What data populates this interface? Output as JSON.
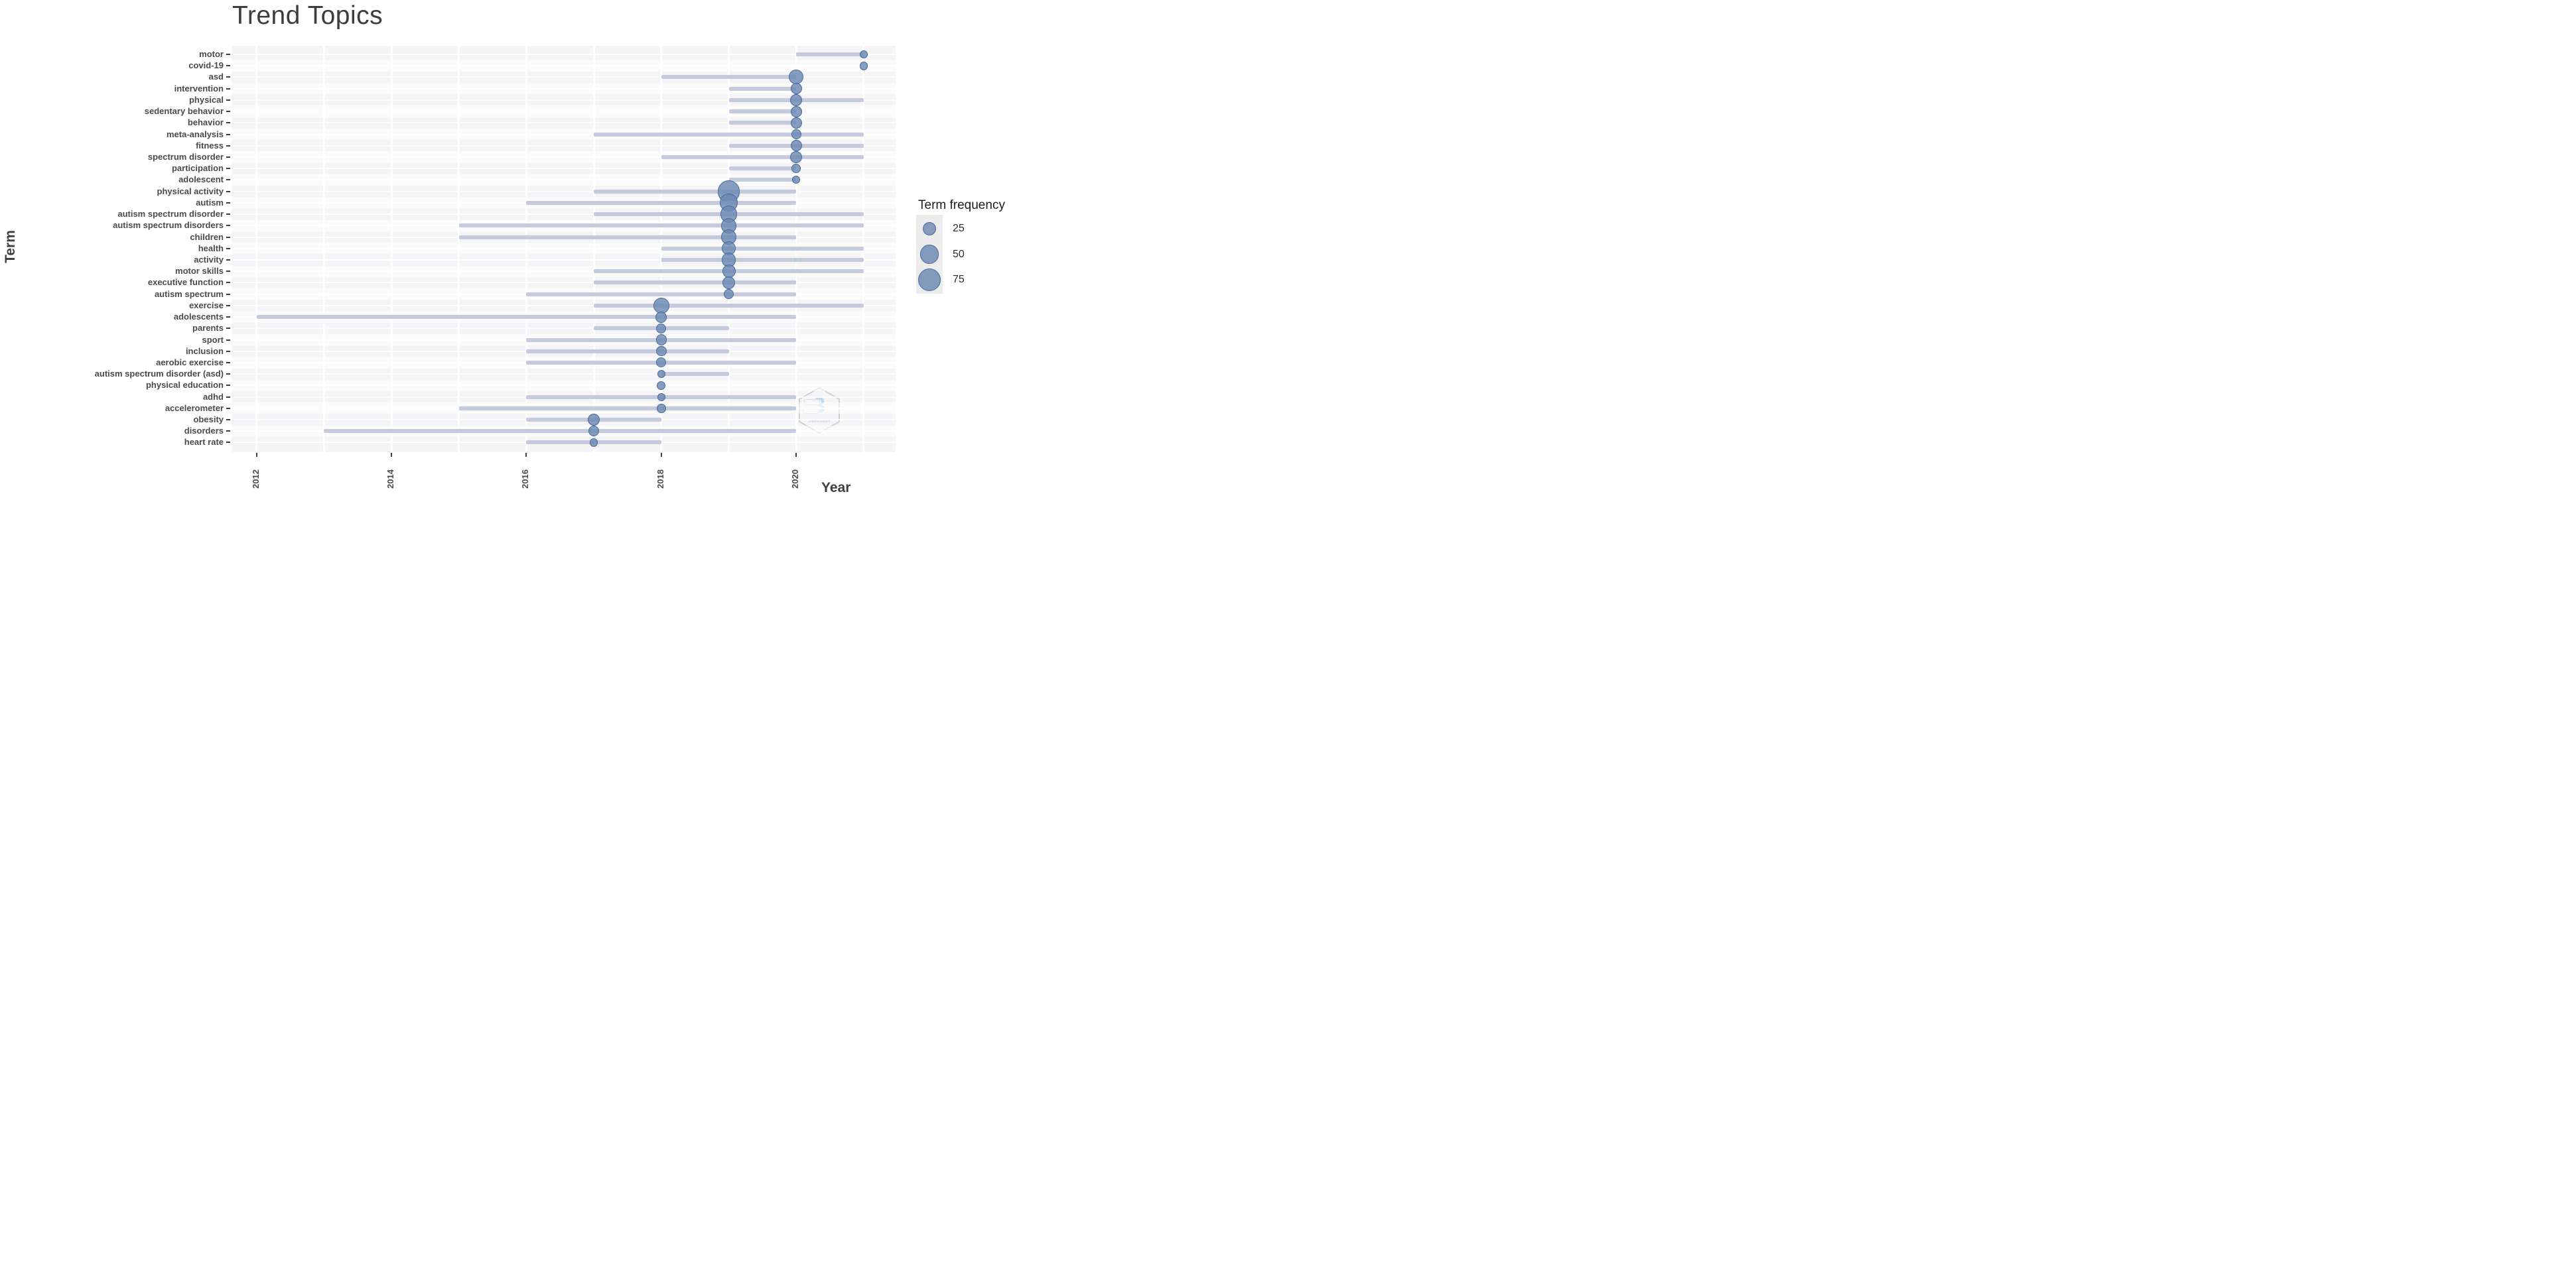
{
  "title": "Trend Topics",
  "colors": {
    "title_text": "#3d3d3d",
    "axis_text": "#4a4a4a",
    "panel_bg": "#f5f5f7",
    "gridline": "#ffffff",
    "trend_line": "#c6cadd",
    "bubble_fill": "rgba(106,137,178,0.82)",
    "bubble_stroke": "#48699c",
    "legend_key_bg": "#ececec"
  },
  "watermark": {
    "glyph": "3",
    "label": "bibliometrix"
  },
  "chart_data": {
    "type": "scatter",
    "subtype": "trend-topics-bubble-timeline",
    "title": "Trend Topics",
    "xlabel": "Year",
    "ylabel": "Term",
    "x_ticks": [
      "2012",
      "2014",
      "2016",
      "2018",
      "2020"
    ],
    "xlim": [
      2011.6,
      2021.5
    ],
    "grid": "white gridlines on light gray panel",
    "legend": {
      "title": "Term frequency",
      "position": "right",
      "sizes": [
        25,
        50,
        75
      ]
    },
    "rows": [
      {
        "term": "motor",
        "start": 2020,
        "end": 2021,
        "peak": 2021,
        "freq": 10
      },
      {
        "term": "covid-19",
        "start": null,
        "end": null,
        "peak": 2021,
        "freq": 10
      },
      {
        "term": "asd",
        "start": 2018,
        "end": 2020,
        "peak": 2020,
        "freq": 30
      },
      {
        "term": "intervention",
        "start": 2019,
        "end": 2020,
        "peak": 2020,
        "freq": 18
      },
      {
        "term": "physical",
        "start": 2019,
        "end": 2021,
        "peak": 2020,
        "freq": 20
      },
      {
        "term": "sedentary behavior",
        "start": 2019,
        "end": 2020,
        "peak": 2020,
        "freq": 18
      },
      {
        "term": "behavior",
        "start": 2019,
        "end": 2020,
        "peak": 2020,
        "freq": 18
      },
      {
        "term": "meta-analysis",
        "start": 2017,
        "end": 2021,
        "peak": 2020,
        "freq": 14
      },
      {
        "term": "fitness",
        "start": 2019,
        "end": 2021,
        "peak": 2020,
        "freq": 18
      },
      {
        "term": "spectrum disorder",
        "start": 2018,
        "end": 2021,
        "peak": 2020,
        "freq": 20
      },
      {
        "term": "participation",
        "start": 2019,
        "end": 2020,
        "peak": 2020,
        "freq": 13
      },
      {
        "term": "adolescent",
        "start": 2019,
        "end": 2020,
        "peak": 2020,
        "freq": 9
      },
      {
        "term": "physical activity",
        "start": 2017,
        "end": 2020,
        "peak": 2019,
        "freq": 72
      },
      {
        "term": "autism",
        "start": 2016,
        "end": 2020,
        "peak": 2019,
        "freq": 45
      },
      {
        "term": "autism spectrum disorder",
        "start": 2017,
        "end": 2021,
        "peak": 2019,
        "freq": 42
      },
      {
        "term": "autism spectrum disorders",
        "start": 2015,
        "end": 2021,
        "peak": 2019,
        "freq": 33
      },
      {
        "term": "children",
        "start": 2015,
        "end": 2020,
        "peak": 2019,
        "freq": 35
      },
      {
        "term": "health",
        "start": 2018,
        "end": 2021,
        "peak": 2019,
        "freq": 28
      },
      {
        "term": "activity",
        "start": 2018,
        "end": 2021,
        "peak": 2019,
        "freq": 28
      },
      {
        "term": "motor skills",
        "start": 2017,
        "end": 2021,
        "peak": 2019,
        "freq": 25
      },
      {
        "term": "executive function",
        "start": 2017,
        "end": 2020,
        "peak": 2019,
        "freq": 22
      },
      {
        "term": "autism spectrum",
        "start": 2016,
        "end": 2020,
        "peak": 2019,
        "freq": 14
      },
      {
        "term": "exercise",
        "start": 2017,
        "end": 2021,
        "peak": 2018,
        "freq": 35
      },
      {
        "term": "adolescents",
        "start": 2012,
        "end": 2020,
        "peak": 2018,
        "freq": 18
      },
      {
        "term": "parents",
        "start": 2017,
        "end": 2019,
        "peak": 2018,
        "freq": 14
      },
      {
        "term": "sport",
        "start": 2016,
        "end": 2020,
        "peak": 2018,
        "freq": 17
      },
      {
        "term": "inclusion",
        "start": 2016,
        "end": 2019,
        "peak": 2018,
        "freq": 15
      },
      {
        "term": "aerobic exercise",
        "start": 2016,
        "end": 2020,
        "peak": 2018,
        "freq": 14
      },
      {
        "term": "autism spectrum disorder (asd)",
        "start": 2018,
        "end": 2019,
        "peak": 2018,
        "freq": 10
      },
      {
        "term": "physical education",
        "start": null,
        "end": null,
        "peak": 2018,
        "freq": 11
      },
      {
        "term": "adhd",
        "start": 2016,
        "end": 2020,
        "peak": 2018,
        "freq": 9
      },
      {
        "term": "accelerometer",
        "start": 2015,
        "end": 2020,
        "peak": 2018,
        "freq": 12
      },
      {
        "term": "obesity",
        "start": 2016,
        "end": 2018,
        "peak": 2017,
        "freq": 20
      },
      {
        "term": "disorders",
        "start": 2013,
        "end": 2020,
        "peak": 2017,
        "freq": 16
      },
      {
        "term": "heart rate",
        "start": 2016,
        "end": 2018,
        "peak": 2017,
        "freq": 10
      }
    ]
  }
}
